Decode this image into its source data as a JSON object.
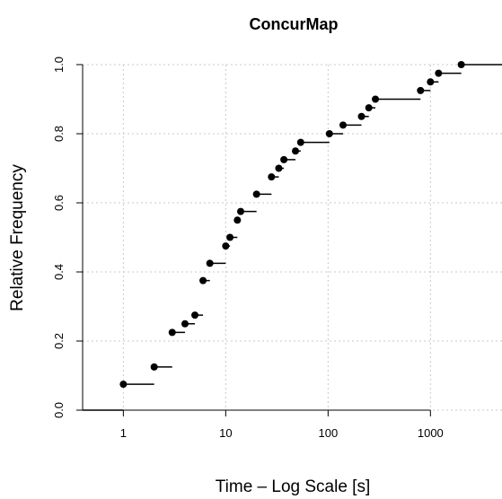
{
  "chart_data": {
    "type": "step",
    "title": "ConcurMap",
    "xlabel": "Time – Log Scale [s]",
    "ylabel": "Relative Frequency",
    "x_scale": "log",
    "xlim": [
      0.4,
      5000
    ],
    "ylim": [
      0,
      1
    ],
    "x_ticks": [
      {
        "value": 1,
        "label": "1"
      },
      {
        "value": 10,
        "label": "10"
      },
      {
        "value": 100,
        "label": "100"
      },
      {
        "value": 1000,
        "label": "1000"
      }
    ],
    "y_ticks": [
      {
        "value": 0,
        "label": "0.0"
      },
      {
        "value": 0.2,
        "label": "0.2"
      },
      {
        "value": 0.4,
        "label": "0.4"
      },
      {
        "value": 0.6,
        "label": "0.6"
      },
      {
        "value": 0.8,
        "label": "0.8"
      },
      {
        "value": 1,
        "label": "1.0"
      }
    ],
    "grid": true,
    "points": [
      {
        "x": 1,
        "y": 0.075
      },
      {
        "x": 2,
        "y": 0.125
      },
      {
        "x": 3,
        "y": 0.225
      },
      {
        "x": 4,
        "y": 0.25
      },
      {
        "x": 5,
        "y": 0.275
      },
      {
        "x": 6,
        "y": 0.375
      },
      {
        "x": 7,
        "y": 0.425
      },
      {
        "x": 10,
        "y": 0.475
      },
      {
        "x": 11,
        "y": 0.5
      },
      {
        "x": 13,
        "y": 0.55
      },
      {
        "x": 14,
        "y": 0.575
      },
      {
        "x": 20,
        "y": 0.625
      },
      {
        "x": 28,
        "y": 0.675
      },
      {
        "x": 33,
        "y": 0.7
      },
      {
        "x": 37,
        "y": 0.725
      },
      {
        "x": 48,
        "y": 0.75
      },
      {
        "x": 54,
        "y": 0.775
      },
      {
        "x": 103,
        "y": 0.8
      },
      {
        "x": 140,
        "y": 0.825
      },
      {
        "x": 212,
        "y": 0.85
      },
      {
        "x": 250,
        "y": 0.875
      },
      {
        "x": 290,
        "y": 0.9
      },
      {
        "x": 800,
        "y": 0.925
      },
      {
        "x": 1000,
        "y": 0.95
      },
      {
        "x": 1200,
        "y": 0.975
      },
      {
        "x": 2000,
        "y": 1.0
      }
    ],
    "colors": {
      "line": "#000000",
      "point": "#000000",
      "grid": "#c8c8c8",
      "axis": "#000000"
    }
  }
}
